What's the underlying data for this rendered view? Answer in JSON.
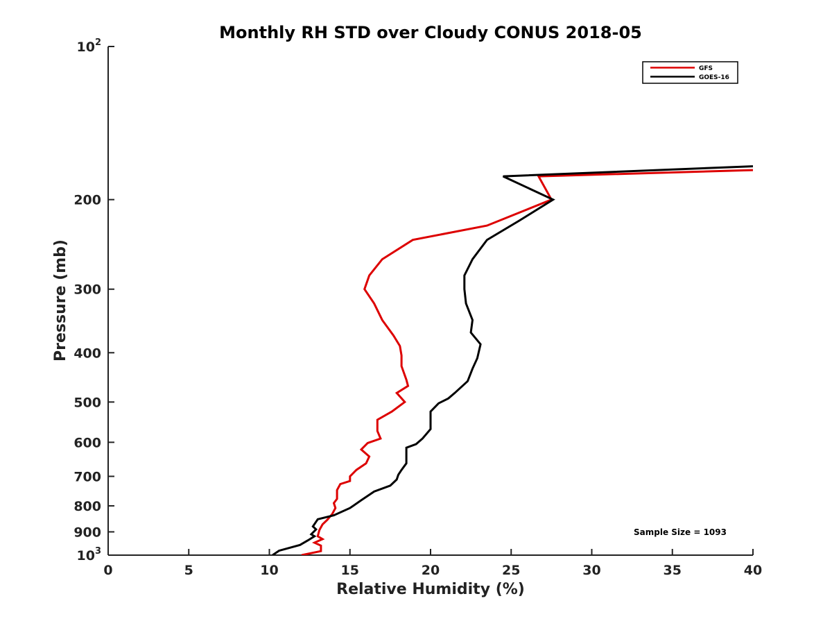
{
  "chart_data": {
    "type": "line",
    "title": "Monthly RH STD over Cloudy CONUS  2018-05",
    "xlabel": "Relative Humidity (%)",
    "ylabel": "Pressure (mb)",
    "xlim": [
      0,
      40
    ],
    "ylim": [
      100,
      1000
    ],
    "y_scale": "log",
    "y_reversed": true,
    "x_ticks": [
      "0",
      "5",
      "10",
      "15",
      "20",
      "25",
      "30",
      "35",
      "40"
    ],
    "x_tick_values": [
      0,
      5,
      10,
      15,
      20,
      25,
      30,
      35,
      40
    ],
    "y_tick_values": [
      100,
      200,
      300,
      400,
      500,
      600,
      700,
      800,
      900,
      1000
    ],
    "y_ticks": [
      {
        "base": "10",
        "exp": "2"
      },
      {
        "base": "200",
        "exp": ""
      },
      {
        "base": "300",
        "exp": ""
      },
      {
        "base": "400",
        "exp": ""
      },
      {
        "base": "500",
        "exp": ""
      },
      {
        "base": "600",
        "exp": ""
      },
      {
        "base": "700",
        "exp": ""
      },
      {
        "base": "800",
        "exp": ""
      },
      {
        "base": "900",
        "exp": ""
      },
      {
        "base": "10",
        "exp": "3"
      }
    ],
    "grid": false,
    "legend_position": "top-right",
    "annotation": "Sample Size = 1093",
    "series": [
      {
        "name": "GFS",
        "color": "#dd0000",
        "points": [
          [
            40,
            175
          ],
          [
            26.7,
            180
          ],
          [
            27.5,
            200
          ],
          [
            23.5,
            225
          ],
          [
            18.9,
            240
          ],
          [
            17.0,
            262
          ],
          [
            16.2,
            282
          ],
          [
            15.9,
            300
          ],
          [
            16.5,
            320
          ],
          [
            17.0,
            345
          ],
          [
            17.7,
            370
          ],
          [
            18.1,
            388
          ],
          [
            18.2,
            405
          ],
          [
            18.2,
            425
          ],
          [
            18.5,
            452
          ],
          [
            18.6,
            465
          ],
          [
            17.9,
            480
          ],
          [
            18.4,
            500
          ],
          [
            17.6,
            522
          ],
          [
            16.7,
            542
          ],
          [
            16.7,
            570
          ],
          [
            16.9,
            590
          ],
          [
            16.1,
            602
          ],
          [
            15.7,
            620
          ],
          [
            16.2,
            640
          ],
          [
            16.0,
            660
          ],
          [
            15.4,
            680
          ],
          [
            15.0,
            700
          ],
          [
            15.0,
            715
          ],
          [
            14.4,
            725
          ],
          [
            14.2,
            745
          ],
          [
            14.2,
            775
          ],
          [
            14.0,
            790
          ],
          [
            14.1,
            808
          ],
          [
            13.9,
            830
          ],
          [
            13.6,
            852
          ],
          [
            13.3,
            870
          ],
          [
            13.1,
            893
          ],
          [
            13.0,
            918
          ],
          [
            13.3,
            930
          ],
          [
            12.8,
            945
          ],
          [
            13.2,
            958
          ],
          [
            13.2,
            982
          ],
          [
            12.0,
            1000
          ]
        ]
      },
      {
        "name": "GOES-16",
        "color": "#000000",
        "points": [
          [
            40,
            172
          ],
          [
            24.5,
            180
          ],
          [
            27.6,
            200
          ],
          [
            25.5,
            220
          ],
          [
            23.5,
            240
          ],
          [
            22.6,
            262
          ],
          [
            22.1,
            282
          ],
          [
            22.1,
            300
          ],
          [
            22.2,
            320
          ],
          [
            22.6,
            345
          ],
          [
            22.5,
            365
          ],
          [
            23.1,
            385
          ],
          [
            22.9,
            410
          ],
          [
            22.6,
            430
          ],
          [
            22.3,
            455
          ],
          [
            21.5,
            480
          ],
          [
            21.1,
            492
          ],
          [
            20.5,
            503
          ],
          [
            20.0,
            522
          ],
          [
            20.0,
            545
          ],
          [
            20.0,
            565
          ],
          [
            19.5,
            590
          ],
          [
            19.1,
            605
          ],
          [
            18.5,
            615
          ],
          [
            18.5,
            640
          ],
          [
            18.5,
            660
          ],
          [
            18.2,
            680
          ],
          [
            18.0,
            695
          ],
          [
            17.9,
            710
          ],
          [
            17.5,
            730
          ],
          [
            16.5,
            750
          ],
          [
            15.7,
            780
          ],
          [
            15.0,
            808
          ],
          [
            14.0,
            835
          ],
          [
            13.0,
            850
          ],
          [
            12.7,
            878
          ],
          [
            12.9,
            890
          ],
          [
            12.6,
            910
          ],
          [
            12.8,
            918
          ],
          [
            12.4,
            935
          ],
          [
            11.9,
            955
          ],
          [
            10.6,
            980
          ],
          [
            10.2,
            1000
          ]
        ]
      }
    ]
  }
}
